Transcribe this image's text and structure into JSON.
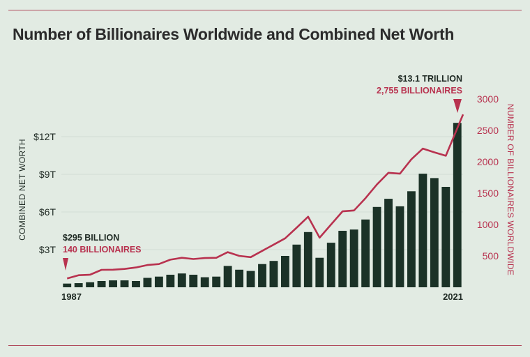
{
  "title": "Number of Billionaires Worldwide and Combined Net Worth",
  "chart_data": {
    "type": "bar",
    "x": [
      1987,
      1988,
      1989,
      1990,
      1991,
      1992,
      1993,
      1994,
      1995,
      1996,
      1997,
      1998,
      1999,
      2000,
      2001,
      2002,
      2003,
      2004,
      2005,
      2006,
      2007,
      2008,
      2009,
      2010,
      2011,
      2012,
      2013,
      2014,
      2015,
      2016,
      2017,
      2018,
      2019,
      2020,
      2021
    ],
    "x_tick_labels": [
      "1987",
      "2021"
    ],
    "series": [
      {
        "type": "bar",
        "axis": "left",
        "color": "#1b3227",
        "values": [
          0.295,
          0.33,
          0.4,
          0.5,
          0.55,
          0.55,
          0.5,
          0.75,
          0.85,
          1.0,
          1.1,
          1.0,
          0.8,
          0.85,
          1.7,
          1.4,
          1.3,
          1.85,
          2.1,
          2.5,
          3.4,
          4.4,
          2.35,
          3.55,
          4.5,
          4.6,
          5.4,
          6.4,
          7.05,
          6.45,
          7.65,
          9.05,
          8.7,
          8.0,
          13.1
        ]
      },
      {
        "type": "line",
        "axis": "right",
        "color": "#b8324f",
        "values": [
          140,
          192,
          200,
          278,
          280,
          292,
          315,
          355,
          370,
          440,
          470,
          450,
          465,
          470,
          560,
          500,
          480,
          580,
          680,
          780,
          950,
          1125,
          790,
          1000,
          1210,
          1225,
          1420,
          1640,
          1825,
          1810,
          2040,
          2210,
          2150,
          2095,
          2755
        ]
      }
    ],
    "left_axis": {
      "label": "COMBINED NET WORTH",
      "ticks": [
        "$3T",
        "$6T",
        "$9T",
        "$12T"
      ],
      "tick_values": [
        3,
        6,
        9,
        12
      ],
      "range": [
        0,
        15
      ]
    },
    "right_axis": {
      "label": "NUMBER OF BILLIONAIRES WORLDWIDE",
      "ticks": [
        "500",
        "1000",
        "1500",
        "2000",
        "2500",
        "3000"
      ],
      "tick_values": [
        500,
        1000,
        1500,
        2000,
        2500,
        3000
      ],
      "range": [
        0,
        3000
      ]
    },
    "annotations": {
      "start": {
        "line1": "$295 BILLION",
        "line2": "140 BILLIONAIRES"
      },
      "end": {
        "line1": "$13.1 TRILLION",
        "line2": "2,755 BILLIONAIRES"
      }
    },
    "grid": true
  }
}
